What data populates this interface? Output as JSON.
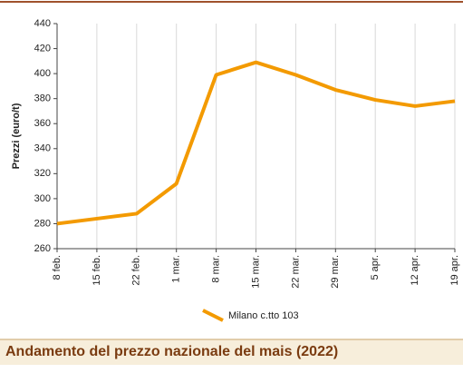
{
  "chart_data": {
    "type": "line",
    "title": "Andamento del prezzo nazionale del mais (2022)",
    "y_label": "Prezzi (euro/t)",
    "categories": [
      "8 feb.",
      "15 feb.",
      "22 feb.",
      "1 mar.",
      "8 mar.",
      "15 mar.",
      "22 mar.",
      "29 mar.",
      "5 apr.",
      "12 apr.",
      "19 apr."
    ],
    "series": [
      {
        "name": "Milano  c.tto 103",
        "color": "#f39a00",
        "values": [
          280,
          284,
          288,
          312,
          399,
          409,
          399,
          387,
          379,
          374,
          378
        ]
      }
    ],
    "ylim": [
      260,
      440
    ],
    "yticks": [
      260,
      280,
      300,
      320,
      340,
      360,
      380,
      400,
      420,
      440
    ],
    "grid": true
  }
}
